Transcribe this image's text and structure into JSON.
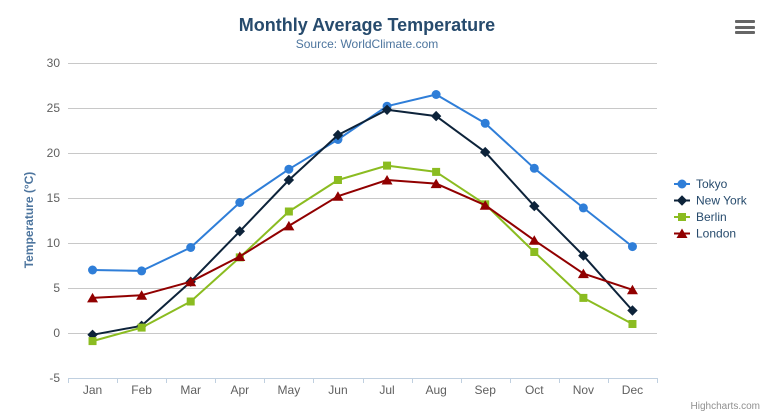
{
  "chart_data": {
    "type": "line",
    "title": "Monthly Average Temperature",
    "subtitle": "Source: WorldClimate.com",
    "categories": [
      "Jan",
      "Feb",
      "Mar",
      "Apr",
      "May",
      "Jun",
      "Jul",
      "Aug",
      "Sep",
      "Oct",
      "Nov",
      "Dec"
    ],
    "series": [
      {
        "name": "Tokyo",
        "color": "#2f7ed8",
        "marker": "circle",
        "values": [
          7.0,
          6.9,
          9.5,
          14.5,
          18.2,
          21.5,
          25.2,
          26.5,
          23.3,
          18.3,
          13.9,
          9.6
        ]
      },
      {
        "name": "New York",
        "color": "#0d233a",
        "marker": "diamond",
        "values": [
          -0.2,
          0.8,
          5.7,
          11.3,
          17.0,
          22.0,
          24.8,
          24.1,
          20.1,
          14.1,
          8.6,
          2.5
        ]
      },
      {
        "name": "Berlin",
        "color": "#8bbc21",
        "marker": "square",
        "values": [
          -0.9,
          0.6,
          3.5,
          8.4,
          13.5,
          17.0,
          18.6,
          17.9,
          14.3,
          9.0,
          3.9,
          1.0
        ]
      },
      {
        "name": "London",
        "color": "#910000",
        "marker": "triangle",
        "values": [
          3.9,
          4.2,
          5.7,
          8.5,
          11.9,
          15.2,
          17.0,
          16.6,
          14.2,
          10.3,
          6.6,
          4.8
        ]
      }
    ],
    "xlabel": "",
    "ylabel": "Temperature (°C)",
    "ylim": [
      -5,
      30
    ],
    "ytick_step": 5,
    "grid": true,
    "legend_position": "right",
    "legend_entries": [
      "Tokyo",
      "New York",
      "Berlin",
      "London"
    ]
  },
  "credits": {
    "label": "Highcharts.com"
  },
  "export_menu": {
    "icon": "hamburger-icon"
  },
  "colors": {
    "background": "#ffffff",
    "title": "#274b6d",
    "subtitle": "#4d759e",
    "axis_title": "#4d759e",
    "axis_label": "#606060",
    "legend_text": "#274b6d",
    "grid_line": "#c8c8c8",
    "axis_line": "#c0d0e0",
    "credits_text": "#909090",
    "menu_icon": "#666666"
  }
}
